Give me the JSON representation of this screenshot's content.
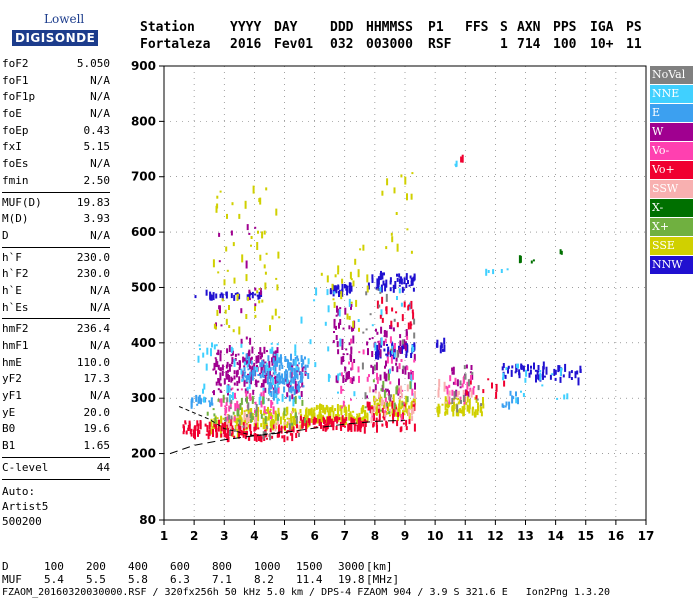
{
  "logo": {
    "line1": "Lowell",
    "line2": "DIGISONDE"
  },
  "header": {
    "labels": [
      "Station",
      "YYYY",
      "DAY",
      "DDD",
      "HHMMSS",
      "P1",
      "FFS",
      "S",
      "AXN",
      "PPS",
      "IGA",
      "PS"
    ],
    "values": [
      "Fortaleza",
      "2016",
      "Fev01",
      "032",
      "003000",
      "RSF",
      "",
      "1",
      "714",
      "100",
      "10+",
      "11"
    ]
  },
  "params": {
    "group1": [
      {
        "name": "foF2",
        "value": "5.050"
      },
      {
        "name": "foF1",
        "value": "N/A"
      },
      {
        "name": "foF1p",
        "value": "N/A"
      },
      {
        "name": "foE",
        "value": "N/A"
      },
      {
        "name": "foEp",
        "value": "0.43"
      },
      {
        "name": "fxI",
        "value": "5.15"
      },
      {
        "name": "foEs",
        "value": "N/A"
      },
      {
        "name": "fmin",
        "value": "2.50"
      }
    ],
    "group2": [
      {
        "name": "MUF(D)",
        "value": "19.83"
      },
      {
        "name": "M(D)",
        "value": "3.93"
      },
      {
        "name": "D",
        "value": "N/A"
      }
    ],
    "group3": [
      {
        "name": "h`F",
        "value": "230.0"
      },
      {
        "name": "h`F2",
        "value": "230.0"
      },
      {
        "name": "h`E",
        "value": "N/A"
      },
      {
        "name": "h`Es",
        "value": "N/A"
      }
    ],
    "group4": [
      {
        "name": "hmF2",
        "value": "236.4"
      },
      {
        "name": "hmF1",
        "value": "N/A"
      },
      {
        "name": "hmE",
        "value": "110.0"
      },
      {
        "name": "yF2",
        "value": "17.3"
      },
      {
        "name": "yF1",
        "value": "N/A"
      },
      {
        "name": "yE",
        "value": "20.0"
      },
      {
        "name": "B0",
        "value": "19.6"
      },
      {
        "name": "B1",
        "value": "1.65"
      }
    ],
    "group5": [
      {
        "name": "C-level",
        "value": "44"
      }
    ]
  },
  "auto": {
    "line1": "Auto:",
    "line2": "Artist5",
    "line3": "500200"
  },
  "footer": {
    "d_label": "D",
    "d_values": [
      "100",
      "200",
      "400",
      "600",
      "800",
      "1000",
      "1500",
      "3000"
    ],
    "d_unit": "[km]",
    "muf_label": "MUF",
    "muf_values": [
      "5.4",
      "5.5",
      "5.8",
      "6.3",
      "7.1",
      "8.2",
      "11.4",
      "19.8"
    ],
    "muf_unit": "[MHz]",
    "file_line": "FZAOM_20160320030000.RSF / 320fx256h 50 kHz 5.0 km / DPS-4 FZAOM 904 / 3.9 S 321.6 E   Ion2Png 1.3.20"
  },
  "legend": [
    {
      "label": "NoVal",
      "color": "#808080"
    },
    {
      "label": "NNE",
      "color": "#40d0ff"
    },
    {
      "label": "E",
      "color": "#3ca0f0"
    },
    {
      "label": "W",
      "color": "#a00090"
    },
    {
      "label": "Vo-",
      "color": "#ff40b0"
    },
    {
      "label": "Vo+",
      "color": "#f00030"
    },
    {
      "label": "SSW",
      "color": "#f8b0b0"
    },
    {
      "label": "X-",
      "color": "#007000"
    },
    {
      "label": "X+",
      "color": "#70b040"
    },
    {
      "label": "SSE",
      "color": "#d0d000"
    },
    {
      "label": "NNW",
      "color": "#2010d0"
    }
  ],
  "chart_data": {
    "type": "scatter",
    "xlim": [
      1,
      17
    ],
    "ylim": [
      80,
      900
    ],
    "xticks": [
      1,
      2,
      3,
      4,
      5,
      6,
      7,
      8,
      9,
      10,
      11,
      12,
      13,
      14,
      15,
      16,
      17
    ],
    "yticks": [
      80,
      200,
      300,
      400,
      500,
      600,
      700,
      800,
      900
    ],
    "grid": "dotted",
    "legend_position": "right",
    "echo_clusters": [
      {
        "name": "NNW",
        "x": [
          2.0,
          4.2
        ],
        "y": [
          480,
          492
        ],
        "n": 30
      },
      {
        "name": "NNW",
        "x": [
          6.5,
          7.3
        ],
        "y": [
          488,
          505
        ],
        "n": 25
      },
      {
        "name": "NNW",
        "x": [
          7.7,
          9.3
        ],
        "y": [
          495,
          525
        ],
        "n": 50
      },
      {
        "name": "NNW",
        "x": [
          8.0,
          9.3
        ],
        "y": [
          375,
          400
        ],
        "n": 40
      },
      {
        "name": "NNW",
        "x": [
          12.2,
          13.7
        ],
        "y": [
          335,
          360
        ],
        "n": 40
      },
      {
        "name": "NNW",
        "x": [
          13.8,
          14.8
        ],
        "y": [
          330,
          355
        ],
        "n": 20
      },
      {
        "name": "NNW",
        "x": [
          10.0,
          10.3
        ],
        "y": [
          385,
          405
        ],
        "n": 8
      },
      {
        "name": "W",
        "x": [
          2.6,
          4.8
        ],
        "y": [
          310,
          390
        ],
        "n": 150
      },
      {
        "name": "W",
        "x": [
          5.0,
          5.7
        ],
        "y": [
          300,
          360
        ],
        "n": 30
      },
      {
        "name": "W",
        "x": [
          6.6,
          7.3
        ],
        "y": [
          330,
          470
        ],
        "n": 50
      },
      {
        "name": "W",
        "x": [
          7.7,
          9.3
        ],
        "y": [
          300,
          430
        ],
        "n": 70
      },
      {
        "name": "W",
        "x": [
          2.6,
          4.2
        ],
        "y": [
          400,
          620
        ],
        "n": 20
      },
      {
        "name": "W",
        "x": [
          10.5,
          11.2
        ],
        "y": [
          300,
          360
        ],
        "n": 15
      },
      {
        "name": "E",
        "x": [
          1.8,
          2.6
        ],
        "y": [
          288,
          300
        ],
        "n": 20
      },
      {
        "name": "E",
        "x": [
          3.6,
          5.8
        ],
        "y": [
          330,
          375
        ],
        "n": 100
      },
      {
        "name": "E",
        "x": [
          4.4,
          5.6
        ],
        "y": [
          295,
          345
        ],
        "n": 40
      },
      {
        "name": "E",
        "x": [
          12.2,
          12.8
        ],
        "y": [
          285,
          310
        ],
        "n": 10
      },
      {
        "name": "NNE",
        "x": [
          2.0,
          5.5
        ],
        "y": [
          290,
          400
        ],
        "n": 60
      },
      {
        "name": "NNE",
        "x": [
          5.5,
          9.3
        ],
        "y": [
          280,
          500
        ],
        "n": 40
      },
      {
        "name": "NNE",
        "x": [
          12.0,
          14.5
        ],
        "y": [
          290,
          360
        ],
        "n": 20
      },
      {
        "name": "NNE",
        "x": [
          10.8,
          12.5
        ],
        "y": [
          520,
          540
        ],
        "n": 5
      },
      {
        "name": "NNE",
        "x": [
          10.6,
          10.7
        ],
        "y": [
          715,
          725
        ],
        "n": 3
      },
      {
        "name": "SSE",
        "x": [
          2.5,
          3.8
        ],
        "y": [
          232,
          265
        ],
        "n": 60
      },
      {
        "name": "SSE",
        "x": [
          3.5,
          5.8
        ],
        "y": [
          245,
          280
        ],
        "n": 120
      },
      {
        "name": "SSE",
        "x": [
          5.8,
          7.8
        ],
        "y": [
          255,
          285
        ],
        "n": 100
      },
      {
        "name": "SSE",
        "x": [
          7.8,
          9.3
        ],
        "y": [
          265,
          300
        ],
        "n": 70
      },
      {
        "name": "SSE",
        "x": [
          10.0,
          11.6
        ],
        "y": [
          270,
          300
        ],
        "n": 60
      },
      {
        "name": "SSE",
        "x": [
          2.6,
          4.8
        ],
        "y": [
          420,
          680
        ],
        "n": 60
      },
      {
        "name": "SSE",
        "x": [
          6.2,
          7.8
        ],
        "y": [
          420,
          580
        ],
        "n": 25
      },
      {
        "name": "SSE",
        "x": [
          8.2,
          9.3
        ],
        "y": [
          560,
          720
        ],
        "n": 15
      },
      {
        "name": "Vo+",
        "x": [
          1.6,
          3.2
        ],
        "y": [
          232,
          258
        ],
        "n": 60
      },
      {
        "name": "Vo+",
        "x": [
          3.0,
          5.5
        ],
        "y": [
          225,
          250
        ],
        "n": 80
      },
      {
        "name": "Vo+",
        "x": [
          5.5,
          7.6
        ],
        "y": [
          245,
          265
        ],
        "n": 80
      },
      {
        "name": "Vo+",
        "x": [
          7.6,
          9.3
        ],
        "y": [
          240,
          290
        ],
        "n": 50
      },
      {
        "name": "Vo+",
        "x": [
          8.0,
          9.3
        ],
        "y": [
          430,
          480
        ],
        "n": 20
      },
      {
        "name": "Vo+",
        "x": [
          11.0,
          12.5
        ],
        "y": [
          300,
          340
        ],
        "n": 10
      },
      {
        "name": "Vo+",
        "x": [
          10.8,
          10.9
        ],
        "y": [
          730,
          740
        ],
        "n": 2
      },
      {
        "name": "Vo-",
        "x": [
          2.8,
          4.8
        ],
        "y": [
          260,
          320
        ],
        "n": 40
      },
      {
        "name": "Vo-",
        "x": [
          6.8,
          9.3
        ],
        "y": [
          260,
          420
        ],
        "n": 40
      },
      {
        "name": "Vo-",
        "x": [
          10.3,
          11.3
        ],
        "y": [
          290,
          340
        ],
        "n": 20
      },
      {
        "name": "SSW",
        "x": [
          3.0,
          5.5
        ],
        "y": [
          240,
          280
        ],
        "n": 20
      },
      {
        "name": "SSW",
        "x": [
          7.8,
          9.3
        ],
        "y": [
          260,
          320
        ],
        "n": 30
      },
      {
        "name": "SSW",
        "x": [
          10.0,
          11.2
        ],
        "y": [
          290,
          330
        ],
        "n": 15
      },
      {
        "name": "NoVal",
        "x": [
          3.0,
          5.5
        ],
        "y": [
          230,
          300
        ],
        "n": 25
      },
      {
        "name": "NoVal",
        "x": [
          7.5,
          9.3
        ],
        "y": [
          280,
          500
        ],
        "n": 20
      },
      {
        "name": "NoVal",
        "x": [
          10.2,
          11.5
        ],
        "y": [
          280,
          360
        ],
        "n": 15
      },
      {
        "name": "X-",
        "x": [
          12.3,
          13.3
        ],
        "y": [
          540,
          560
        ],
        "n": 4
      },
      {
        "name": "X-",
        "x": [
          14.1,
          14.2
        ],
        "y": [
          562,
          570
        ],
        "n": 2
      },
      {
        "name": "X+",
        "x": [
          2.4,
          5.8
        ],
        "y": [
          250,
          300
        ],
        "n": 30
      },
      {
        "name": "X+",
        "x": [
          7.5,
          9.2
        ],
        "y": [
          270,
          340
        ],
        "n": 15
      }
    ],
    "profile_curve": {
      "x": [
        1.2,
        2.0,
        3.0,
        4.0,
        5.0,
        6.0,
        7.0,
        8.0,
        9.0
      ],
      "y": [
        200,
        215,
        225,
        232,
        238,
        246,
        253,
        258,
        260
      ]
    },
    "trace_curve": {
      "x": [
        1.5,
        2.5,
        3.0,
        4.0,
        5.0
      ],
      "y": [
        285,
        262,
        245,
        232,
        240
      ]
    }
  }
}
